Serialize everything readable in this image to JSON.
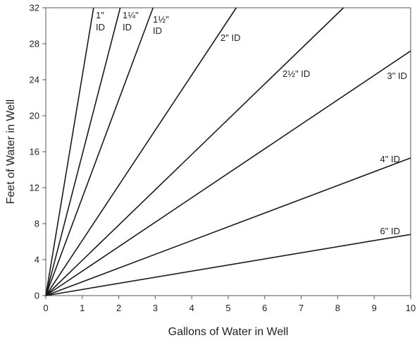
{
  "chart_data": {
    "type": "line",
    "title": "",
    "xlabel": "Gallons of Water in Well",
    "ylabel": "Feet of Water in Well",
    "xlim": [
      0,
      10
    ],
    "ylim": [
      0,
      32
    ],
    "x_ticks": [
      "0",
      "1",
      "2",
      "3",
      "4",
      "5",
      "6",
      "7",
      "8",
      "9",
      "10"
    ],
    "y_ticks": [
      "0",
      "4",
      "8",
      "12",
      "16",
      "20",
      "24",
      "28",
      "32"
    ],
    "grid": false,
    "legend": "none",
    "line_color": "#1a1a1a",
    "series": [
      {
        "name": "1\" ID",
        "label_lines": [
          "1\"",
          "ID"
        ],
        "x": [
          0,
          1.31
        ],
        "y": [
          0,
          32
        ]
      },
      {
        "name": "1¼\" ID",
        "label_lines": [
          "1¼\"",
          "ID"
        ],
        "x": [
          0,
          2.04
        ],
        "y": [
          0,
          32
        ]
      },
      {
        "name": "1½\" ID",
        "label_lines": [
          "1½\"",
          "ID"
        ],
        "x": [
          0,
          2.94
        ],
        "y": [
          0,
          32
        ]
      },
      {
        "name": "2\" ID",
        "label_lines": [
          "2\" ID"
        ],
        "x": [
          0,
          5.22
        ],
        "y": [
          0,
          32
        ]
      },
      {
        "name": "2½\" ID",
        "label_lines": [
          "2½\" ID"
        ],
        "x": [
          0,
          8.16
        ],
        "y": [
          0,
          32
        ]
      },
      {
        "name": "3\" ID",
        "label_lines": [
          "3\" ID"
        ],
        "x": [
          0,
          10
        ],
        "y": [
          0,
          27.2
        ]
      },
      {
        "name": "4\" ID",
        "label_lines": [
          "4\" ID"
        ],
        "x": [
          0,
          10
        ],
        "y": [
          0,
          15.3
        ]
      },
      {
        "name": "6\" ID",
        "label_lines": [
          "6\" ID"
        ],
        "x": [
          0,
          10
        ],
        "y": [
          0,
          6.8
        ]
      }
    ]
  }
}
